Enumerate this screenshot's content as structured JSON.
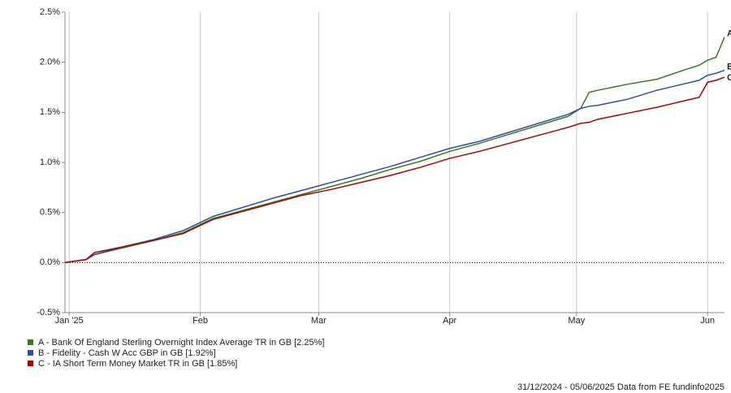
{
  "chart_data": {
    "type": "line",
    "x": [
      0,
      5,
      7,
      14,
      21,
      28,
      35,
      42,
      49,
      56,
      63,
      70,
      77,
      84,
      91,
      98,
      105,
      112,
      119,
      122,
      124,
      126,
      133,
      140,
      147,
      150,
      152,
      154,
      156
    ],
    "xlim": [
      0,
      156
    ],
    "xticks": [
      {
        "value": 1,
        "label": "Jan '25"
      },
      {
        "value": 32,
        "label": "Feb"
      },
      {
        "value": 60,
        "label": "Mar"
      },
      {
        "value": 91,
        "label": "Apr"
      },
      {
        "value": 121,
        "label": "May"
      },
      {
        "value": 152,
        "label": "Jun"
      }
    ],
    "ylim": [
      -0.5,
      2.5
    ],
    "yticks": [
      {
        "value": -0.5,
        "label": "-0.5%"
      },
      {
        "value": 0,
        "label": "0.0%"
      },
      {
        "value": 0.5,
        "label": "0.5%"
      },
      {
        "value": 1,
        "label": "1.0%"
      },
      {
        "value": 1.5,
        "label": "1.5%"
      },
      {
        "value": 2,
        "label": "2.0%"
      },
      {
        "value": 2.5,
        "label": "2.5%"
      }
    ],
    "grid": "x",
    "zero_line": true,
    "series": [
      {
        "name": "A - Bank Of England Sterling Overnight Index Average TR in GB [2.25%]",
        "end_label": "A",
        "color": "#3b7a1f",
        "values": [
          0,
          0.03,
          0.08,
          0.15,
          0.22,
          0.3,
          0.44,
          0.52,
          0.6,
          0.68,
          0.76,
          0.84,
          0.93,
          1.01,
          1.11,
          1.19,
          1.28,
          1.37,
          1.46,
          1.54,
          1.7,
          1.72,
          1.78,
          1.83,
          1.93,
          1.97,
          2.02,
          2.05,
          2.25
        ]
      },
      {
        "name": "B - Fidelity - Cash W Acc GBP in GB [1.92%]",
        "end_label": "B",
        "color": "#2b4fa3",
        "values": [
          0,
          0.03,
          0.08,
          0.16,
          0.23,
          0.32,
          0.46,
          0.55,
          0.64,
          0.72,
          0.8,
          0.88,
          0.96,
          1.05,
          1.14,
          1.21,
          1.3,
          1.39,
          1.48,
          1.54,
          1.56,
          1.57,
          1.63,
          1.72,
          1.79,
          1.82,
          1.87,
          1.89,
          1.92
        ]
      },
      {
        "name": "C - IA Short Term Money Market TR in GB [1.85%]",
        "end_label": "C",
        "color": "#b00000",
        "values": [
          0,
          0.03,
          0.1,
          0.16,
          0.22,
          0.29,
          0.43,
          0.51,
          0.59,
          0.67,
          0.73,
          0.8,
          0.87,
          0.95,
          1.04,
          1.11,
          1.19,
          1.27,
          1.35,
          1.39,
          1.4,
          1.43,
          1.49,
          1.55,
          1.62,
          1.65,
          1.8,
          1.82,
          1.85
        ]
      }
    ],
    "footer": "31/12/2024 - 05/06/2025 Data from FE fundinfo2025"
  }
}
